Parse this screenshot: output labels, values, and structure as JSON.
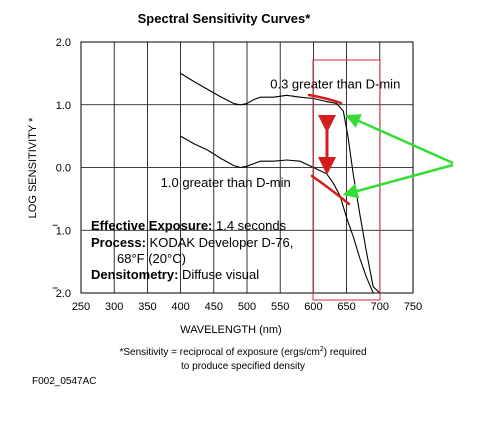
{
  "chart_data": {
    "type": "line",
    "title": "Spectral Sensitivity Curves*",
    "xlabel": "WAVELENGTH (nm)",
    "ylabel": "LOG SENSITIVITY *",
    "xlim": [
      250,
      750
    ],
    "ylim": [
      -2.0,
      2.0
    ],
    "x_ticks": [
      "250",
      "300",
      "350",
      "400",
      "450",
      "500",
      "550",
      "600",
      "650",
      "700",
      "750"
    ],
    "y_ticks": [
      {
        "value": 2.0,
        "label": "2.0"
      },
      {
        "value": 1.0,
        "label": "1.0"
      },
      {
        "value": 0.0,
        "label": "0.0"
      },
      {
        "value": -1.0,
        "label": "1.0",
        "bar": true
      },
      {
        "value": -2.0,
        "label": "2.0",
        "bar": true
      }
    ],
    "grid": true,
    "series": [
      {
        "name": "0.3 greater than D-min",
        "label_x": 535,
        "label_y": 1.32,
        "x": [
          400,
          420,
          440,
          460,
          480,
          490,
          500,
          510,
          520,
          540,
          560,
          580,
          600,
          620,
          635,
          645,
          652,
          660,
          670,
          680,
          690,
          700
        ],
        "y": [
          1.5,
          1.37,
          1.25,
          1.13,
          1.02,
          1.0,
          1.02,
          1.08,
          1.12,
          1.12,
          1.15,
          1.12,
          1.1,
          1.05,
          1.02,
          0.9,
          0.5,
          -0.1,
          -0.75,
          -1.35,
          -1.9,
          -2.0
        ]
      },
      {
        "name": "1.0 greater than D-min",
        "label_x": 370,
        "label_y": -0.25,
        "x": [
          400,
          420,
          440,
          460,
          480,
          490,
          500,
          510,
          520,
          540,
          560,
          580,
          590,
          600,
          610,
          620,
          630,
          640,
          650,
          660,
          670,
          680,
          690,
          700
        ],
        "y": [
          0.5,
          0.38,
          0.28,
          0.15,
          0.03,
          0.0,
          0.02,
          0.06,
          0.1,
          0.1,
          0.12,
          0.1,
          0.05,
          0.0,
          -0.05,
          -0.1,
          -0.25,
          -0.45,
          -0.8,
          -1.1,
          -1.45,
          -1.75,
          -2.0,
          -2.0
        ]
      }
    ],
    "conditions": [
      {
        "label": "Effective Exposure:",
        "value": "1.4 seconds"
      },
      {
        "label": "Process:",
        "value": "KODAK Developer D-76,"
      },
      {
        "label": "",
        "value": "68°F (20°C)"
      },
      {
        "label": "Densitometry:",
        "value": "Diffuse visual"
      }
    ],
    "footnote": {
      "line1_prefix": "*Sensitivity = reciprocal of exposure (ergs/cm",
      "line1_sup": "2",
      "line1_suffix": ") required",
      "line2": "to produce specified density"
    },
    "figure_code": "F002_0547AC",
    "markup_colors": {
      "box": "#c8323c",
      "arrow": "#d21e1e",
      "pointer": "#33dd33"
    }
  }
}
